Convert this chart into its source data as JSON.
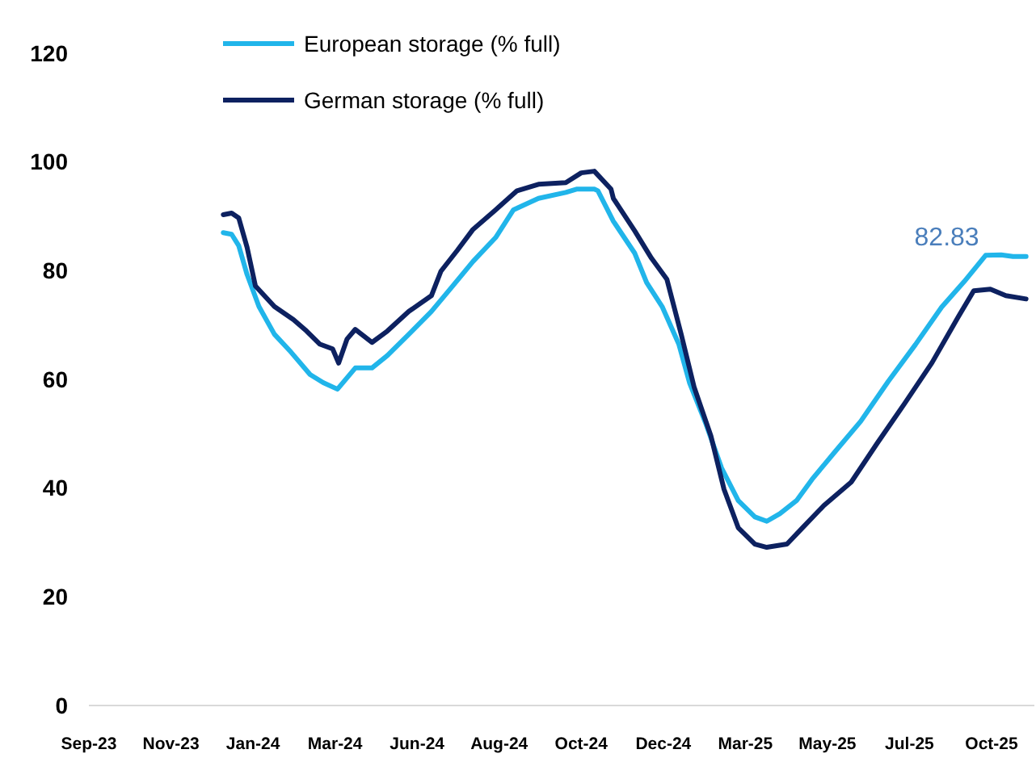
{
  "chart_data": {
    "type": "line",
    "xlim": [
      "2023-09-05",
      "2025-11-08"
    ],
    "ylim": [
      0,
      120
    ],
    "yticks": [
      0,
      20,
      40,
      60,
      80,
      100,
      120
    ],
    "xticks": [
      {
        "value": "2023-09-05",
        "label": "Sep-23"
      },
      {
        "value": "2023-11-13",
        "label": "Nov-23"
      },
      {
        "value": "2024-01-21",
        "label": "Jan-24"
      },
      {
        "value": "2024-03-30",
        "label": "Mar-24"
      },
      {
        "value": "2024-06-07",
        "label": "Jun-24"
      },
      {
        "value": "2024-08-15",
        "label": "Aug-24"
      },
      {
        "value": "2024-10-23",
        "label": "Oct-24"
      },
      {
        "value": "2024-12-31",
        "label": "Dec-24"
      },
      {
        "value": "2025-03-10",
        "label": "Mar-25"
      },
      {
        "value": "2025-05-18",
        "label": "May-25"
      },
      {
        "value": "2025-07-26",
        "label": "Jul-25"
      },
      {
        "value": "2025-10-03",
        "label": "Oct-25"
      }
    ],
    "grid": false,
    "legend": "top",
    "marker": "none",
    "line_style": "solid",
    "series": [
      {
        "name": "European  storage (% full)",
        "color": "#21b5ea",
        "x": [
          "2023-12-27",
          "2024-01-03",
          "2024-01-09",
          "2024-01-16",
          "2024-01-26",
          "2024-02-08",
          "2024-02-22",
          "2024-03-09",
          "2024-03-20",
          "2024-04-01",
          "2024-04-16",
          "2024-04-30",
          "2024-05-13",
          "2024-05-31",
          "2024-06-19",
          "2024-07-07",
          "2024-07-24",
          "2024-08-12",
          "2024-08-27",
          "2024-09-17",
          "2024-10-10",
          "2024-10-19",
          "2024-11-03",
          "2024-11-06",
          "2024-11-19",
          "2024-12-07",
          "2024-12-17",
          "2024-12-30",
          "2025-01-13",
          "2025-01-22",
          "2025-02-05",
          "2025-02-18",
          "2025-03-04",
          "2025-03-18",
          "2025-03-28",
          "2025-04-08",
          "2025-04-22",
          "2025-05-05",
          "2025-05-24",
          "2025-06-15",
          "2025-07-08",
          "2025-07-31",
          "2025-08-22",
          "2025-09-10",
          "2025-09-28",
          "2025-10-11",
          "2025-10-21",
          "2025-11-01"
        ],
        "values": [
          87.0,
          86.7,
          84.6,
          79.3,
          73.4,
          68.3,
          65.0,
          60.9,
          59.4,
          58.2,
          62.1,
          62.1,
          64.4,
          68.3,
          72.5,
          77.2,
          81.7,
          86.1,
          91.2,
          93.3,
          94.4,
          95.0,
          95.0,
          94.7,
          89.1,
          83.2,
          77.8,
          73.4,
          66.5,
          59.4,
          51.7,
          43.7,
          37.7,
          34.7,
          33.9,
          35.3,
          37.7,
          41.6,
          46.6,
          52.3,
          59.6,
          66.4,
          73.3,
          78.0,
          82.83,
          82.9,
          82.6,
          82.6
        ]
      },
      {
        "name": "German storage (% full)",
        "color": "#0d2160",
        "x": [
          "2023-12-27",
          "2024-01-03",
          "2024-01-09",
          "2024-01-16",
          "2024-01-23",
          "2024-02-08",
          "2024-02-24",
          "2024-03-06",
          "2024-03-17",
          "2024-03-28",
          "2024-04-02",
          "2024-04-09",
          "2024-04-16",
          "2024-04-30",
          "2024-05-13",
          "2024-05-31",
          "2024-06-19",
          "2024-06-27",
          "2024-07-11",
          "2024-07-24",
          "2024-08-12",
          "2024-08-30",
          "2024-09-17",
          "2024-10-10",
          "2024-10-23",
          "2024-11-03",
          "2024-11-17",
          "2024-11-19",
          "2024-12-07",
          "2024-12-21",
          "2025-01-03",
          "2025-01-15",
          "2025-01-26",
          "2025-02-09",
          "2025-02-20",
          "2025-03-04",
          "2025-03-18",
          "2025-03-28",
          "2025-04-14",
          "2025-04-27",
          "2025-05-15",
          "2025-06-07",
          "2025-06-29",
          "2025-07-22",
          "2025-08-14",
          "2025-09-05",
          "2025-09-18",
          "2025-10-02",
          "2025-10-15",
          "2025-11-01"
        ],
        "values": [
          90.3,
          90.6,
          89.7,
          84.3,
          77.2,
          73.4,
          71.0,
          68.9,
          66.5,
          65.6,
          63.0,
          67.4,
          69.2,
          66.8,
          68.9,
          72.5,
          75.4,
          79.9,
          83.8,
          87.6,
          91.2,
          94.7,
          95.9,
          96.2,
          98.0,
          98.3,
          95.0,
          93.3,
          87.3,
          82.3,
          78.4,
          68.3,
          58.5,
          49.6,
          39.8,
          32.7,
          29.7,
          29.1,
          29.7,
          32.7,
          36.8,
          41.1,
          48.3,
          55.6,
          63.1,
          71.5,
          76.3,
          76.6,
          75.4,
          74.8
        ]
      }
    ],
    "annotations": [
      {
        "text": "82.83",
        "x": "2025-09-28",
        "y": 82.83
      }
    ]
  }
}
